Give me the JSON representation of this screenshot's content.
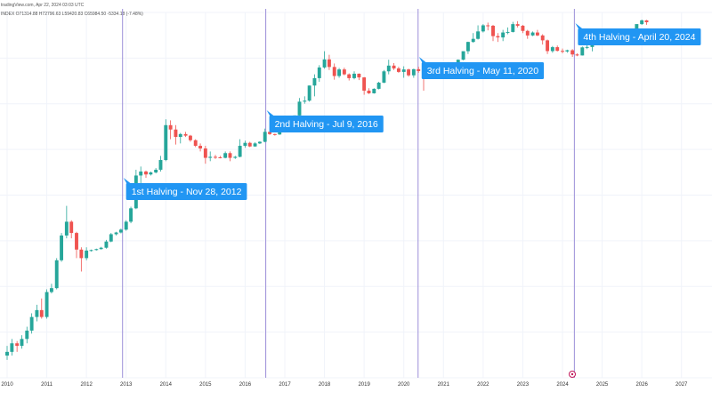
{
  "header": {
    "source_line": "tradingView.com, Apr 22, 2024 03:03 UTC",
    "ohlc_line": "INDEX O71314.88 H72796.63 L59420.83 C65984.50 -5334.18 (-7.48%)"
  },
  "chart_data": {
    "type": "candlestick",
    "scale": "log",
    "x_ticks": [
      "2010",
      "2011",
      "2012",
      "2013",
      "2014",
      "2015",
      "2016",
      "2017",
      "2018",
      "2019",
      "2020",
      "2021",
      "2022",
      "2023",
      "2024",
      "2025",
      "2026",
      "2027"
    ],
    "xlim": [
      2010.0,
      2027.5
    ],
    "grid": true,
    "series": [
      {
        "t": 2010.0,
        "o": 0.06,
        "h": 0.09,
        "l": 0.05,
        "c": 0.07
      },
      {
        "t": 2010.12,
        "o": 0.07,
        "h": 0.12,
        "l": 0.06,
        "c": 0.1
      },
      {
        "t": 2010.25,
        "o": 0.1,
        "h": 0.11,
        "l": 0.07,
        "c": 0.09
      },
      {
        "t": 2010.37,
        "o": 0.09,
        "h": 0.14,
        "l": 0.08,
        "c": 0.12
      },
      {
        "t": 2010.5,
        "o": 0.12,
        "h": 0.2,
        "l": 0.1,
        "c": 0.17
      },
      {
        "t": 2010.62,
        "o": 0.17,
        "h": 0.35,
        "l": 0.15,
        "c": 0.3
      },
      {
        "t": 2010.75,
        "o": 0.3,
        "h": 0.5,
        "l": 0.25,
        "c": 0.4
      },
      {
        "t": 2010.87,
        "o": 0.4,
        "h": 0.65,
        "l": 0.28,
        "c": 0.3
      },
      {
        "t": 2011.0,
        "o": 0.3,
        "h": 0.95,
        "l": 0.28,
        "c": 0.85
      },
      {
        "t": 2011.12,
        "o": 0.85,
        "h": 1.2,
        "l": 0.8,
        "c": 1.0
      },
      {
        "t": 2011.25,
        "o": 1.0,
        "h": 3.5,
        "l": 0.95,
        "c": 3.2
      },
      {
        "t": 2011.37,
        "o": 3.2,
        "h": 10.0,
        "l": 3.0,
        "c": 9.0
      },
      {
        "t": 2011.5,
        "o": 9.0,
        "h": 31.0,
        "l": 8.0,
        "c": 16.0
      },
      {
        "t": 2011.62,
        "o": 16.0,
        "h": 17.0,
        "l": 8.0,
        "c": 10.0
      },
      {
        "t": 2011.75,
        "o": 10.0,
        "h": 10.5,
        "l": 3.5,
        "c": 5.0
      },
      {
        "t": 2011.87,
        "o": 5.0,
        "h": 5.5,
        "l": 2.0,
        "c": 3.5
      },
      {
        "t": 2012.0,
        "o": 3.5,
        "h": 5.5,
        "l": 3.2,
        "c": 4.8
      },
      {
        "t": 2012.12,
        "o": 4.8,
        "h": 5.0,
        "l": 4.6,
        "c": 4.9
      },
      {
        "t": 2012.25,
        "o": 4.9,
        "h": 5.2,
        "l": 4.8,
        "c": 5.1
      },
      {
        "t": 2012.37,
        "o": 5.1,
        "h": 5.6,
        "l": 5.0,
        "c": 5.4
      },
      {
        "t": 2012.5,
        "o": 5.4,
        "h": 7.5,
        "l": 5.2,
        "c": 7.0
      },
      {
        "t": 2012.62,
        "o": 7.0,
        "h": 10.0,
        "l": 6.8,
        "c": 9.5
      },
      {
        "t": 2012.75,
        "o": 9.5,
        "h": 10.5,
        "l": 9.0,
        "c": 10.2
      },
      {
        "t": 2012.87,
        "o": 10.2,
        "h": 12.0,
        "l": 9.8,
        "c": 11.5
      },
      {
        "t": 2013.0,
        "o": 11.5,
        "h": 17.0,
        "l": 11.0,
        "c": 16.0
      },
      {
        "t": 2013.12,
        "o": 16.0,
        "h": 30.0,
        "l": 15.0,
        "c": 28.0
      },
      {
        "t": 2013.25,
        "o": 28.0,
        "h": 140.0,
        "l": 27.0,
        "c": 110.0
      },
      {
        "t": 2013.37,
        "o": 110.0,
        "h": 160.0,
        "l": 70.0,
        "c": 130.0
      },
      {
        "t": 2013.5,
        "o": 130.0,
        "h": 135.0,
        "l": 100.0,
        "c": 115.0
      },
      {
        "t": 2013.62,
        "o": 115.0,
        "h": 130.0,
        "l": 110.0,
        "c": 125.0
      },
      {
        "t": 2013.75,
        "o": 125.0,
        "h": 150.0,
        "l": 120.0,
        "c": 140.0
      },
      {
        "t": 2013.87,
        "o": 140.0,
        "h": 250.0,
        "l": 130.0,
        "c": 210.0
      },
      {
        "t": 2014.0,
        "o": 210.0,
        "h": 1150.0,
        "l": 200.0,
        "c": 900.0
      },
      {
        "t": 2014.12,
        "o": 900.0,
        "h": 1100.0,
        "l": 500.0,
        "c": 750.0
      },
      {
        "t": 2014.25,
        "o": 750.0,
        "h": 900.0,
        "l": 400.0,
        "c": 550.0
      },
      {
        "t": 2014.37,
        "o": 550.0,
        "h": 650.0,
        "l": 420.0,
        "c": 620.0
      },
      {
        "t": 2014.5,
        "o": 620.0,
        "h": 680.0,
        "l": 550.0,
        "c": 580.0
      },
      {
        "t": 2014.62,
        "o": 580.0,
        "h": 600.0,
        "l": 450.0,
        "c": 480.0
      },
      {
        "t": 2014.75,
        "o": 480.0,
        "h": 500.0,
        "l": 360.0,
        "c": 380.0
      },
      {
        "t": 2014.87,
        "o": 380.0,
        "h": 420.0,
        "l": 300.0,
        "c": 340.0
      },
      {
        "t": 2015.0,
        "o": 340.0,
        "h": 380.0,
        "l": 180.0,
        "c": 230.0
      },
      {
        "t": 2015.12,
        "o": 230.0,
        "h": 300.0,
        "l": 200.0,
        "c": 240.0
      },
      {
        "t": 2015.25,
        "o": 240.0,
        "h": 260.0,
        "l": 220.0,
        "c": 235.0
      },
      {
        "t": 2015.37,
        "o": 235.0,
        "h": 250.0,
        "l": 225.0,
        "c": 230.0
      },
      {
        "t": 2015.5,
        "o": 230.0,
        "h": 300.0,
        "l": 225.0,
        "c": 280.0
      },
      {
        "t": 2015.62,
        "o": 280.0,
        "h": 300.0,
        "l": 200.0,
        "c": 230.0
      },
      {
        "t": 2015.75,
        "o": 230.0,
        "h": 250.0,
        "l": 220.0,
        "c": 240.0
      },
      {
        "t": 2015.87,
        "o": 240.0,
        "h": 500.0,
        "l": 235.0,
        "c": 380.0
      },
      {
        "t": 2016.0,
        "o": 380.0,
        "h": 470.0,
        "l": 350.0,
        "c": 430.0
      },
      {
        "t": 2016.12,
        "o": 430.0,
        "h": 450.0,
        "l": 360.0,
        "c": 370.0
      },
      {
        "t": 2016.25,
        "o": 370.0,
        "h": 440.0,
        "l": 365.0,
        "c": 420.0
      },
      {
        "t": 2016.37,
        "o": 420.0,
        "h": 460.0,
        "l": 410.0,
        "c": 450.0
      },
      {
        "t": 2016.5,
        "o": 450.0,
        "h": 780.0,
        "l": 440.0,
        "c": 680.0
      },
      {
        "t": 2016.62,
        "o": 680.0,
        "h": 700.0,
        "l": 600.0,
        "c": 620.0
      },
      {
        "t": 2016.75,
        "o": 620.0,
        "h": 630.0,
        "l": 580.0,
        "c": 610.0
      },
      {
        "t": 2016.87,
        "o": 610.0,
        "h": 760.0,
        "l": 600.0,
        "c": 740.0
      },
      {
        "t": 2017.0,
        "o": 740.0,
        "h": 1000.0,
        "l": 720.0,
        "c": 970.0
      },
      {
        "t": 2017.12,
        "o": 970.0,
        "h": 1200.0,
        "l": 900.0,
        "c": 1080.0
      },
      {
        "t": 2017.25,
        "o": 1080.0,
        "h": 1350.0,
        "l": 900.0,
        "c": 1350.0
      },
      {
        "t": 2017.37,
        "o": 1350.0,
        "h": 2800.0,
        "l": 1300.0,
        "c": 2400.0
      },
      {
        "t": 2017.5,
        "o": 2400.0,
        "h": 3000.0,
        "l": 2200.0,
        "c": 2500.0
      },
      {
        "t": 2017.62,
        "o": 2500.0,
        "h": 4700.0,
        "l": 2400.0,
        "c": 4700.0
      },
      {
        "t": 2017.75,
        "o": 4700.0,
        "h": 7500.0,
        "l": 3000.0,
        "c": 6400.0
      },
      {
        "t": 2017.87,
        "o": 6400.0,
        "h": 11000.0,
        "l": 5500.0,
        "c": 10000.0
      },
      {
        "t": 2018.0,
        "o": 10000.0,
        "h": 19700.0,
        "l": 9500.0,
        "c": 14000.0
      },
      {
        "t": 2018.12,
        "o": 14000.0,
        "h": 17000.0,
        "l": 9000.0,
        "c": 10200.0
      },
      {
        "t": 2018.25,
        "o": 10200.0,
        "h": 11800.0,
        "l": 6000.0,
        "c": 7000.0
      },
      {
        "t": 2018.37,
        "o": 7000.0,
        "h": 9800.0,
        "l": 6500.0,
        "c": 9200.0
      },
      {
        "t": 2018.5,
        "o": 9200.0,
        "h": 9900.0,
        "l": 7200.0,
        "c": 7500.0
      },
      {
        "t": 2018.62,
        "o": 7500.0,
        "h": 7800.0,
        "l": 5800.0,
        "c": 6400.0
      },
      {
        "t": 2018.75,
        "o": 6400.0,
        "h": 8500.0,
        "l": 6100.0,
        "c": 7700.0
      },
      {
        "t": 2018.87,
        "o": 7700.0,
        "h": 7800.0,
        "l": 5900.0,
        "c": 6600.0
      },
      {
        "t": 2019.0,
        "o": 6600.0,
        "h": 6700.0,
        "l": 3200.0,
        "c": 3800.0
      },
      {
        "t": 2019.12,
        "o": 3800.0,
        "h": 4200.0,
        "l": 3300.0,
        "c": 3400.0
      },
      {
        "t": 2019.25,
        "o": 3400.0,
        "h": 4200.0,
        "l": 3350.0,
        "c": 4100.0
      },
      {
        "t": 2019.37,
        "o": 4100.0,
        "h": 5500.0,
        "l": 4000.0,
        "c": 5300.0
      },
      {
        "t": 2019.5,
        "o": 5300.0,
        "h": 9000.0,
        "l": 5200.0,
        "c": 8500.0
      },
      {
        "t": 2019.62,
        "o": 8500.0,
        "h": 13800.0,
        "l": 7500.0,
        "c": 10800.0
      },
      {
        "t": 2019.75,
        "o": 10800.0,
        "h": 12000.0,
        "l": 9000.0,
        "c": 9600.0
      },
      {
        "t": 2019.87,
        "o": 9600.0,
        "h": 10300.0,
        "l": 8000.0,
        "c": 8300.0
      },
      {
        "t": 2020.0,
        "o": 8300.0,
        "h": 10500.0,
        "l": 6500.0,
        "c": 9200.0
      },
      {
        "t": 2020.12,
        "o": 9200.0,
        "h": 9500.0,
        "l": 6800.0,
        "c": 7200.0
      },
      {
        "t": 2020.25,
        "o": 7200.0,
        "h": 9500.0,
        "l": 6500.0,
        "c": 9300.0
      },
      {
        "t": 2020.37,
        "o": 9300.0,
        "h": 10300.0,
        "l": 8000.0,
        "c": 8600.0
      },
      {
        "t": 2020.5,
        "o": 8600.0,
        "h": 9200.0,
        "l": 3800.0,
        "c": 6400.0
      },
      {
        "t": 2020.62,
        "o": 6400.0,
        "h": 9400.0,
        "l": 6200.0,
        "c": 8600.0
      },
      {
        "t": 2020.75,
        "o": 8600.0,
        "h": 10000.0,
        "l": 8500.0,
        "c": 9500.0
      },
      {
        "t": 2020.87,
        "o": 9500.0,
        "h": 10500.0,
        "l": 9000.0,
        "c": 9100.0
      },
      {
        "t": 2021.0,
        "o": 9100.0,
        "h": 11500.0,
        "l": 9000.0,
        "c": 11300.0
      },
      {
        "t": 2021.12,
        "o": 11300.0,
        "h": 12500.0,
        "l": 10500.0,
        "c": 11700.0
      },
      {
        "t": 2021.25,
        "o": 11700.0,
        "h": 12000.0,
        "l": 10000.0,
        "c": 10800.0
      },
      {
        "t": 2021.37,
        "o": 10800.0,
        "h": 14000.0,
        "l": 10500.0,
        "c": 13800.0
      },
      {
        "t": 2021.5,
        "o": 13800.0,
        "h": 19500.0,
        "l": 13500.0,
        "c": 19700.0
      },
      {
        "t": 2021.62,
        "o": 19700.0,
        "h": 29300.0,
        "l": 17500.0,
        "c": 29000.0
      },
      {
        "t": 2021.75,
        "o": 29000.0,
        "h": 42000.0,
        "l": 28000.0,
        "c": 33000.0
      },
      {
        "t": 2021.87,
        "o": 33000.0,
        "h": 58000.0,
        "l": 32000.0,
        "c": 45000.0
      },
      {
        "t": 2022.0,
        "o": 45000.0,
        "h": 61000.0,
        "l": 43000.0,
        "c": 58000.0
      },
      {
        "t": 2022.12,
        "o": 58000.0,
        "h": 65000.0,
        "l": 47000.0,
        "c": 57000.0
      },
      {
        "t": 2022.25,
        "o": 57000.0,
        "h": 59000.0,
        "l": 30000.0,
        "c": 37000.0
      },
      {
        "t": 2022.37,
        "o": 37000.0,
        "h": 42000.0,
        "l": 29000.0,
        "c": 35000.0
      },
      {
        "t": 2022.5,
        "o": 35000.0,
        "h": 48000.0,
        "l": 30000.0,
        "c": 43000.0
      },
      {
        "t": 2022.62,
        "o": 43000.0,
        "h": 53000.0,
        "l": 40000.0,
        "c": 44000.0
      },
      {
        "t": 2022.75,
        "o": 44000.0,
        "h": 67000.0,
        "l": 43000.0,
        "c": 61000.0
      },
      {
        "t": 2022.87,
        "o": 61000.0,
        "h": 69000.0,
        "l": 53000.0,
        "c": 57000.0
      },
      {
        "t": 2023.0,
        "o": 57000.0,
        "h": 59000.0,
        "l": 42000.0,
        "c": 46000.0
      },
      {
        "t": 2023.12,
        "o": 46000.0,
        "h": 48000.0,
        "l": 33000.0,
        "c": 38000.0
      },
      {
        "t": 2023.25,
        "o": 38000.0,
        "h": 45000.0,
        "l": 37000.0,
        "c": 43000.0
      },
      {
        "t": 2023.37,
        "o": 43000.0,
        "h": 48000.0,
        "l": 37000.0,
        "c": 38000.0
      },
      {
        "t": 2023.5,
        "o": 38000.0,
        "h": 40000.0,
        "l": 26000.0,
        "c": 31000.0
      },
      {
        "t": 2023.62,
        "o": 31000.0,
        "h": 32000.0,
        "l": 17500.0,
        "c": 19800.0
      },
      {
        "t": 2023.75,
        "o": 19800.0,
        "h": 24500.0,
        "l": 18500.0,
        "c": 23300.0
      },
      {
        "t": 2023.87,
        "o": 23300.0,
        "h": 25000.0,
        "l": 19500.0,
        "c": 20000.0
      },
      {
        "t": 2024.0,
        "o": 20000.0,
        "h": 22000.0,
        "l": 18000.0,
        "c": 19500.0
      },
      {
        "t": 2024.12,
        "o": 19500.0,
        "h": 21000.0,
        "l": 18500.0,
        "c": 20500.0
      },
      {
        "t": 2024.25,
        "o": 20500.0,
        "h": 21500.0,
        "l": 15500.0,
        "c": 17200.0
      },
      {
        "t": 2024.37,
        "o": 17200.0,
        "h": 18000.0,
        "l": 16000.0,
        "c": 16500.0
      },
      {
        "t": 2024.5,
        "o": 16500.0,
        "h": 24000.0,
        "l": 16400.0,
        "c": 23100.0
      },
      {
        "t": 2024.62,
        "o": 23100.0,
        "h": 25200.0,
        "l": 21500.0,
        "c": 23500.0
      },
      {
        "t": 2024.75,
        "o": 23500.0,
        "h": 29000.0,
        "l": 19600.0,
        "c": 28500.0
      },
      {
        "t": 2024.87,
        "o": 28500.0,
        "h": 31000.0,
        "l": 27000.0,
        "c": 29200.0
      },
      {
        "t": 2025.0,
        "o": 29200.0,
        "h": 31800.0,
        "l": 28500.0,
        "c": 30500.0
      },
      {
        "t": 2025.12,
        "o": 30500.0,
        "h": 31500.0,
        "l": 28800.0,
        "c": 30000.0
      },
      {
        "t": 2025.25,
        "o": 30000.0,
        "h": 31000.0,
        "l": 26000.0,
        "c": 27000.0
      },
      {
        "t": 2025.37,
        "o": 27000.0,
        "h": 35000.0,
        "l": 26800.0,
        "c": 34500.0
      },
      {
        "t": 2025.5,
        "o": 34500.0,
        "h": 38000.0,
        "l": 34000.0,
        "c": 37800.0
      },
      {
        "t": 2025.62,
        "o": 37800.0,
        "h": 44700.0,
        "l": 37500.0,
        "c": 42200.0
      },
      {
        "t": 2025.75,
        "o": 42200.0,
        "h": 48900.0,
        "l": 38500.0,
        "c": 42500.0
      },
      {
        "t": 2025.87,
        "o": 42500.0,
        "h": 52000.0,
        "l": 41500.0,
        "c": 61100.0
      },
      {
        "t": 2026.0,
        "o": 61100.0,
        "h": 73800.0,
        "l": 59000.0,
        "c": 71300.0
      },
      {
        "t": 2026.12,
        "o": 71300.0,
        "h": 72800.0,
        "l": 59400.0,
        "c": 65980.0
      }
    ],
    "halvings": [
      {
        "label": "1st Halving - Nov 28, 2012",
        "t": 2012.91
      },
      {
        "label": "2nd Halving - Jul 9, 2016",
        "t": 2016.52
      },
      {
        "label": "3rd Halving - May 11, 2020",
        "t": 2020.36
      },
      {
        "label": "4th Halving - April 20, 2024",
        "t": 2024.3
      }
    ],
    "colors": {
      "up": "#26a69a",
      "down": "#ef5350",
      "halving_line": "#9c8fd8",
      "callout": "#2196f3",
      "grid": "#f0f3fa"
    }
  }
}
